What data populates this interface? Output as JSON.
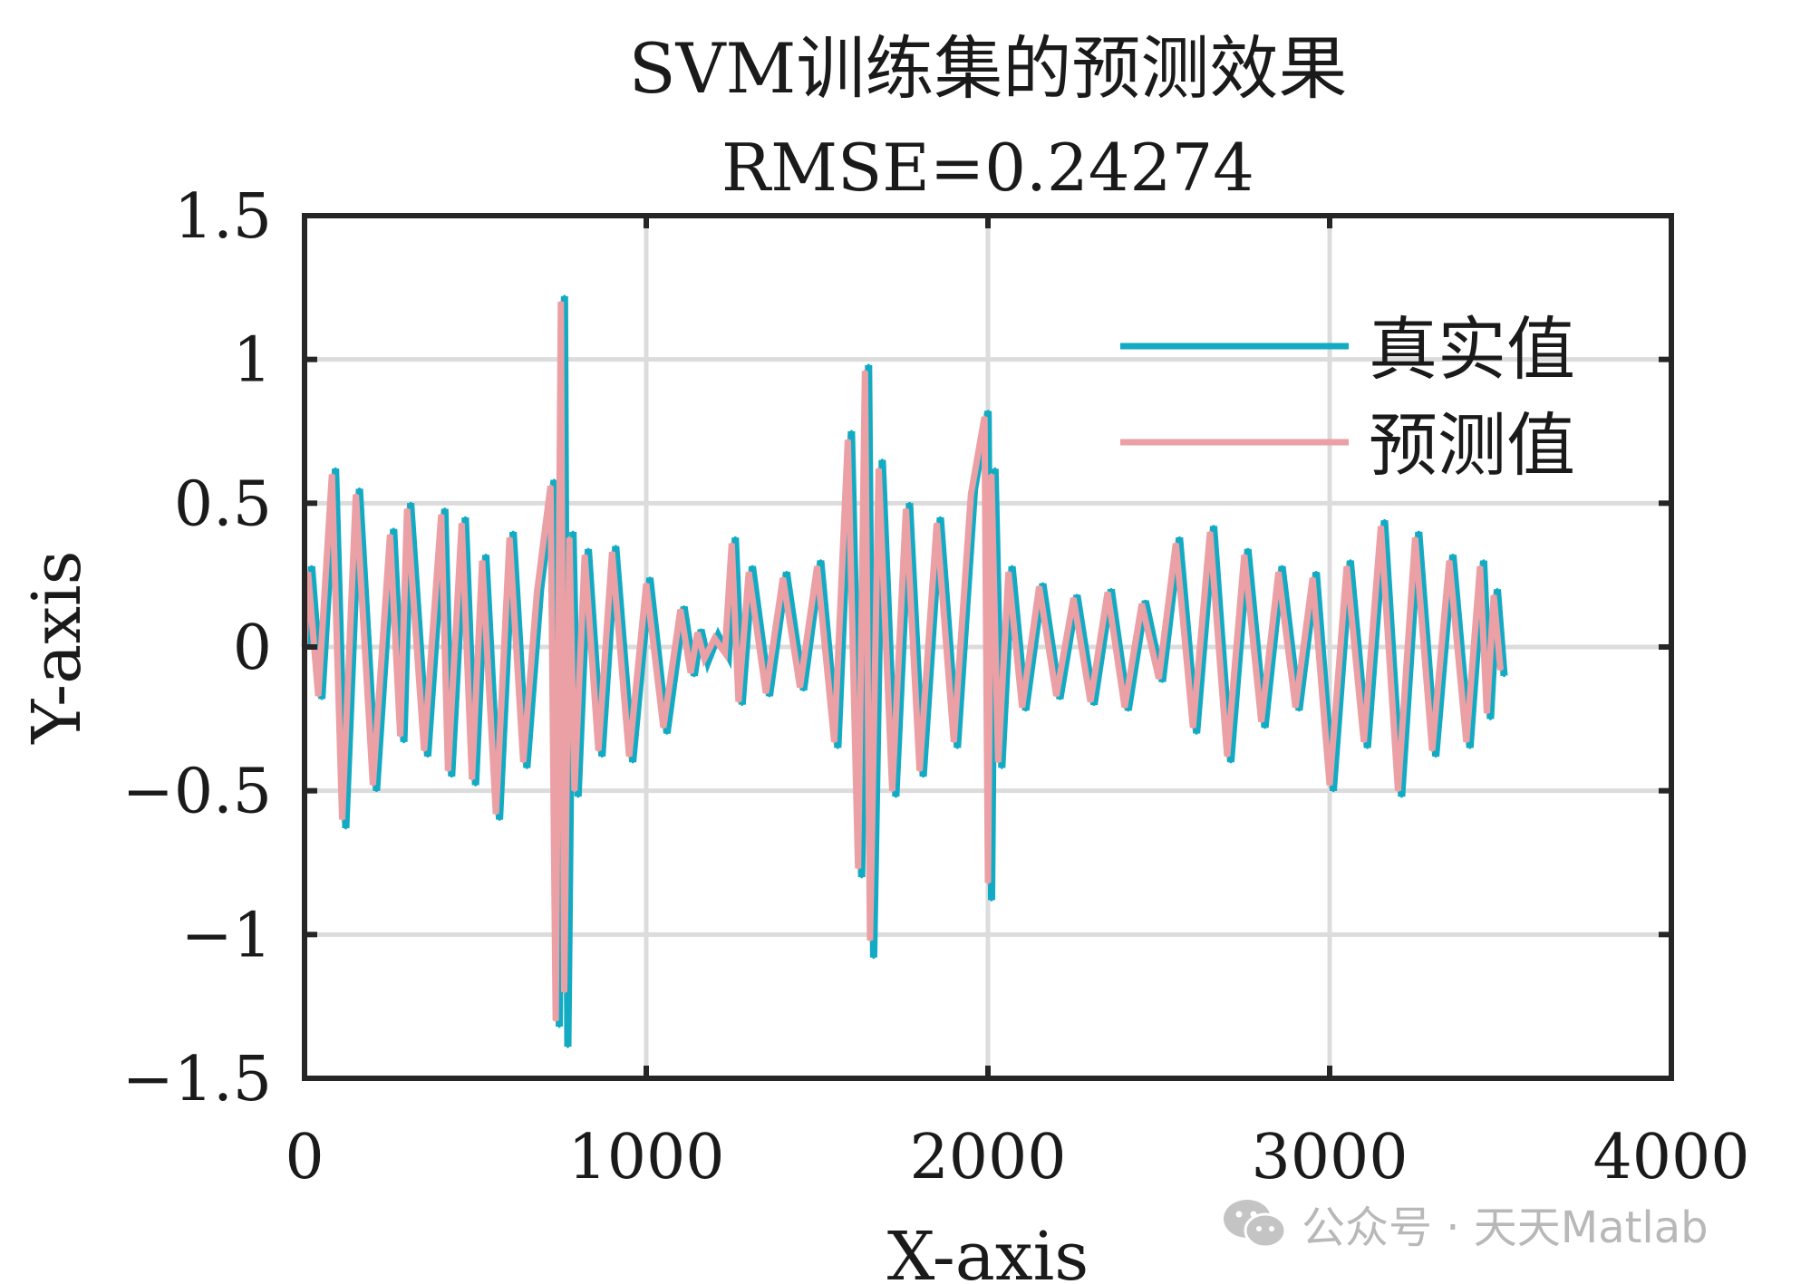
{
  "chart_data": {
    "type": "line",
    "title": "SVM训练集的预测效果",
    "subtitle": "RMSE=0.24274",
    "xlabel": "X-axis",
    "ylabel": "Y-axis",
    "xlim": [
      0,
      4000
    ],
    "ylim": [
      -1.5,
      1.5
    ],
    "xticks": [
      0,
      1000,
      2000,
      3000,
      4000
    ],
    "xtick_labels": [
      "0",
      "1000",
      "2000",
      "3000",
      "4000"
    ],
    "yticks": [
      -1.5,
      -1,
      -0.5,
      0,
      0.5,
      1,
      1.5
    ],
    "ytick_labels": [
      "−1.5",
      "−1",
      "−0.5",
      "0",
      "0.5",
      "1",
      "1.5"
    ],
    "grid": true,
    "legend_position": "top-right",
    "series": [
      {
        "name": "真实值",
        "color": "#12abc3",
        "x": [
          0,
          10,
          40,
          80,
          110,
          150,
          200,
          250,
          280,
          300,
          350,
          400,
          420,
          460,
          490,
          520,
          560,
          600,
          640,
          680,
          720,
          735,
          750,
          760,
          775,
          790,
          820,
          860,
          900,
          950,
          1000,
          1050,
          1100,
          1130,
          1150,
          1170,
          1200,
          1230,
          1250,
          1270,
          1300,
          1350,
          1400,
          1450,
          1500,
          1550,
          1590,
          1620,
          1640,
          1655,
          1680,
          1720,
          1760,
          1800,
          1850,
          1900,
          1950,
          1990,
          2000,
          2010,
          2030,
          2060,
          2100,
          2150,
          2200,
          2250,
          2300,
          2350,
          2400,
          2450,
          2500,
          2550,
          2600,
          2650,
          2700,
          2750,
          2800,
          2850,
          2900,
          2950,
          3000,
          3050,
          3100,
          3150,
          3200,
          3250,
          3300,
          3350,
          3400,
          3440,
          3460,
          3480,
          3500
        ],
        "y": [
          0.0,
          0.28,
          -0.18,
          0.62,
          -0.63,
          0.55,
          -0.5,
          0.41,
          -0.33,
          0.5,
          -0.38,
          0.48,
          -0.45,
          0.45,
          -0.48,
          0.32,
          -0.6,
          0.4,
          -0.42,
          0.2,
          0.58,
          -1.32,
          1.22,
          -1.39,
          0.4,
          -0.52,
          0.34,
          -0.38,
          0.35,
          -0.4,
          0.24,
          -0.3,
          0.14,
          -0.1,
          0.06,
          -0.05,
          0.04,
          -0.03,
          0.38,
          -0.2,
          0.28,
          -0.17,
          0.26,
          -0.15,
          0.3,
          -0.35,
          0.75,
          -0.8,
          0.98,
          -1.08,
          0.65,
          -0.52,
          0.5,
          -0.45,
          0.45,
          -0.35,
          0.55,
          0.82,
          -0.88,
          0.62,
          -0.42,
          0.28,
          -0.22,
          0.22,
          -0.18,
          0.18,
          -0.2,
          0.2,
          -0.22,
          0.16,
          -0.12,
          0.38,
          -0.3,
          0.42,
          -0.4,
          0.34,
          -0.28,
          0.28,
          -0.22,
          0.26,
          -0.5,
          0.3,
          -0.35,
          0.44,
          -0.52,
          0.4,
          -0.38,
          0.32,
          -0.35,
          0.3,
          -0.25,
          0.2,
          -0.1
        ]
      },
      {
        "name": "预测值",
        "color": "#eba0a5",
        "x": [
          0,
          10,
          40,
          80,
          110,
          150,
          200,
          250,
          280,
          300,
          350,
          400,
          420,
          460,
          490,
          520,
          560,
          600,
          640,
          680,
          720,
          735,
          750,
          760,
          775,
          790,
          820,
          860,
          900,
          950,
          1000,
          1050,
          1100,
          1130,
          1150,
          1170,
          1200,
          1230,
          1250,
          1270,
          1300,
          1350,
          1400,
          1450,
          1500,
          1550,
          1590,
          1620,
          1640,
          1655,
          1680,
          1720,
          1760,
          1800,
          1850,
          1900,
          1950,
          1990,
          2000,
          2010,
          2030,
          2060,
          2100,
          2150,
          2200,
          2250,
          2300,
          2350,
          2400,
          2450,
          2500,
          2550,
          2600,
          2650,
          2700,
          2750,
          2800,
          2850,
          2900,
          2950,
          3000,
          3050,
          3100,
          3150,
          3200,
          3250,
          3300,
          3350,
          3400,
          3440,
          3460,
          3480,
          3500
        ],
        "y": [
          0.0,
          0.26,
          -0.17,
          0.6,
          -0.6,
          0.53,
          -0.48,
          0.39,
          -0.31,
          0.48,
          -0.36,
          0.46,
          -0.43,
          0.43,
          -0.46,
          0.3,
          -0.58,
          0.38,
          -0.4,
          0.19,
          0.56,
          -1.3,
          1.2,
          -1.2,
          0.38,
          -0.5,
          0.32,
          -0.36,
          0.33,
          -0.38,
          0.22,
          -0.28,
          0.13,
          -0.09,
          0.05,
          -0.04,
          0.03,
          -0.02,
          0.36,
          -0.19,
          0.26,
          -0.16,
          0.24,
          -0.14,
          0.28,
          -0.33,
          0.72,
          -0.77,
          0.96,
          -1.02,
          0.62,
          -0.5,
          0.48,
          -0.43,
          0.43,
          -0.33,
          0.53,
          0.8,
          -0.82,
          0.6,
          -0.4,
          0.26,
          -0.21,
          0.21,
          -0.17,
          0.17,
          -0.19,
          0.19,
          -0.21,
          0.15,
          -0.11,
          0.36,
          -0.28,
          0.4,
          -0.38,
          0.32,
          -0.26,
          0.26,
          -0.21,
          0.24,
          -0.48,
          0.28,
          -0.33,
          0.42,
          -0.5,
          0.38,
          -0.36,
          0.3,
          -0.33,
          0.28,
          -0.23,
          0.18,
          -0.08
        ]
      }
    ]
  },
  "watermark": {
    "icon": "wechat-icon",
    "text": "公众号 · 天天Matlab",
    "color": "#b8b8b8"
  }
}
